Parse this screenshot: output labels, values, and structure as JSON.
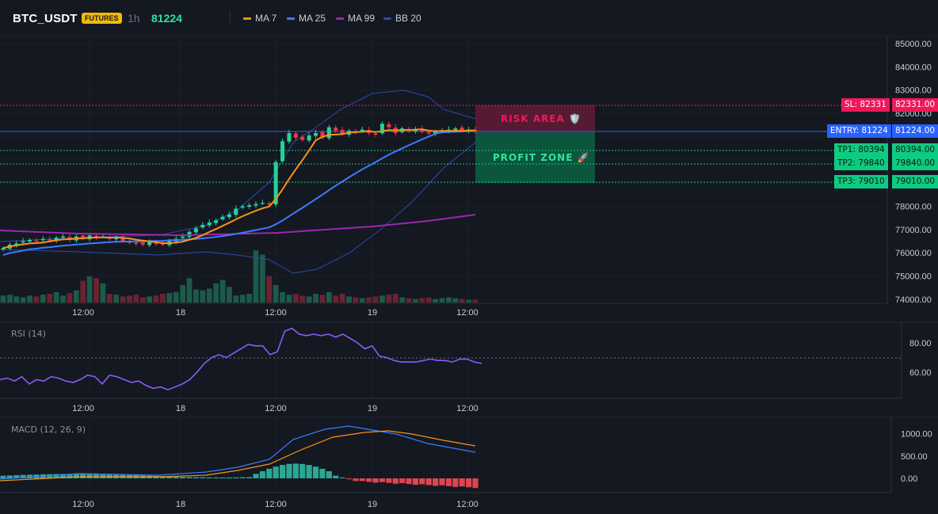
{
  "header": {
    "symbol": "BTC_USDT",
    "badge": "FUTURES",
    "timeframe": "1h",
    "last_price": "81224",
    "indicators": [
      {
        "label": "MA 7",
        "color": "#f7931a"
      },
      {
        "label": "MA 25",
        "color": "#3d7bff"
      },
      {
        "label": "MA 99",
        "color": "#9c27b0"
      },
      {
        "label": "BB 20",
        "color": "#2f4aa8"
      }
    ]
  },
  "price_axis": [
    "85000.00",
    "84000.00",
    "83000.00",
    "82000.00",
    "81000.00",
    "80000.00",
    "79000.00",
    "78000.00",
    "77000.00",
    "76000.00",
    "75000.00",
    "74000.00"
  ],
  "time_axis": [
    "12:00",
    "18",
    "12:00",
    "19",
    "12:00"
  ],
  "zones": {
    "risk_label": "RISK AREA 🛡️",
    "profit_label": "PROFIT ZONE 🚀"
  },
  "levels": [
    {
      "tag": "SL: 82331",
      "value": "82331.00",
      "kind": "sl"
    },
    {
      "tag": "ENTRY: 81224",
      "value": "81224.00",
      "kind": "entry"
    },
    {
      "tag": "TP1: 80394",
      "value": "80394.00",
      "kind": "tp"
    },
    {
      "tag": "TP2: 79840",
      "value": "79840.00",
      "kind": "tp"
    },
    {
      "tag": "TP3: 79010",
      "value": "79010.00",
      "kind": "tp"
    }
  ],
  "rsi": {
    "label": "RSI (14)",
    "axis": [
      "80.00",
      "60.00"
    ]
  },
  "macd": {
    "label": "MACD (12, 26, 9)",
    "axis": [
      "1000.00",
      "500.00",
      "0.00"
    ]
  },
  "colors": {
    "up": "#22d39a",
    "down": "#f23645",
    "sl": "#f0185b",
    "entry": "#2962ff",
    "tp": "#0ecb81",
    "background": "#141821"
  }
}
